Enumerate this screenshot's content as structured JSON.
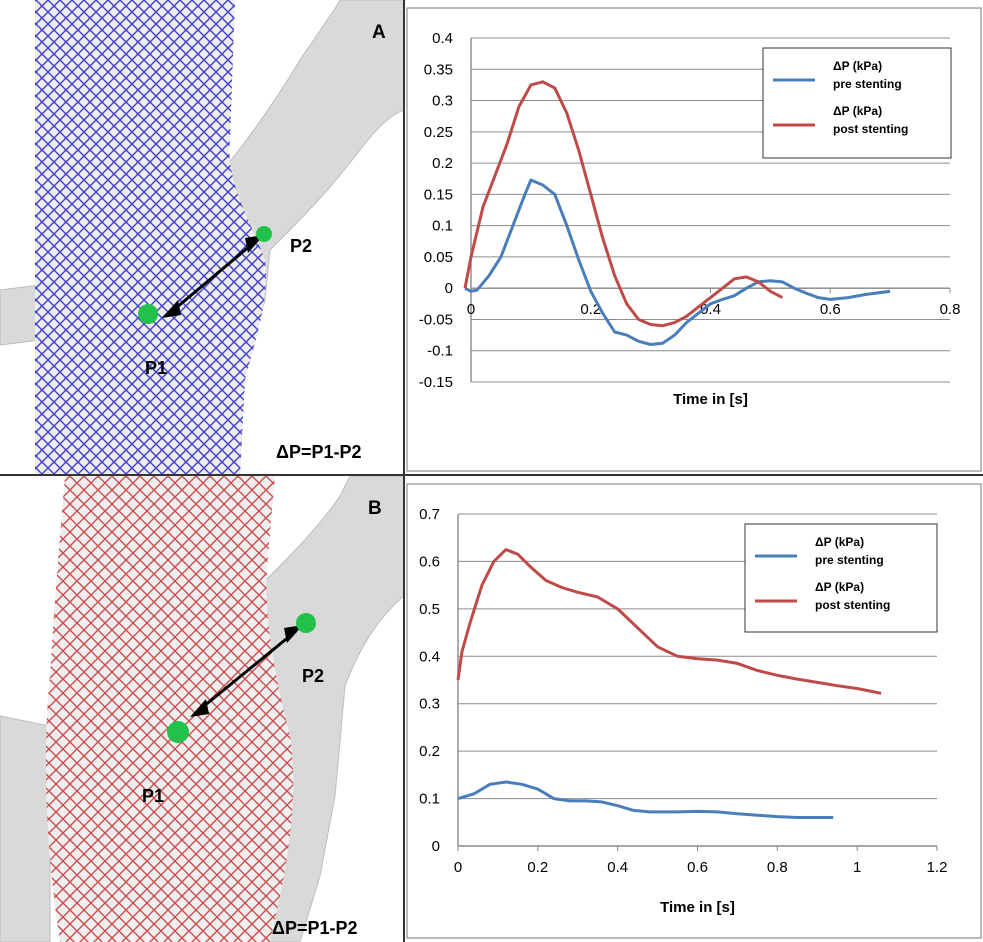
{
  "panels": [
    {
      "label": "A",
      "stent_color": "#2a2ac8",
      "point1": "P1",
      "point2": "P2",
      "formula": "ΔP=P1-P2"
    },
    {
      "label": "B",
      "stent_color": "#c83a3a",
      "point1": "P1",
      "point2": "P2",
      "formula": "ΔP=P1-P2"
    }
  ],
  "chart_data": [
    {
      "type": "line",
      "xlabel": "Time in [s]",
      "ylabel": "",
      "xlim": [
        0,
        0.8
      ],
      "ylim": [
        -0.15,
        0.4
      ],
      "x_ticks": [
        "0",
        "0.2",
        "0.4",
        "0.6",
        "0.8"
      ],
      "y_ticks": [
        "0.4",
        "0.35",
        "0.3",
        "0.25",
        "0.2",
        "0.15",
        "0.1",
        "0.05",
        "0",
        "-0.05",
        "-0.1",
        "-0.15"
      ],
      "grid": "horizontal",
      "legend": "top-right",
      "series": [
        {
          "name": "ΔP (kPa) pre stenting",
          "line1": "ΔP (kPa)",
          "line2": "pre stenting",
          "color": "#4a7ebb",
          "x": [
            -0.01,
            0.0,
            0.01,
            0.03,
            0.05,
            0.07,
            0.09,
            0.1,
            0.12,
            0.14,
            0.16,
            0.18,
            0.2,
            0.22,
            0.24,
            0.26,
            0.28,
            0.3,
            0.32,
            0.34,
            0.36,
            0.38,
            0.4,
            0.42,
            0.44,
            0.46,
            0.48,
            0.5,
            0.52,
            0.54,
            0.56,
            0.58,
            0.6,
            0.63,
            0.66,
            0.7
          ],
          "y": [
            0.0,
            -0.005,
            -0.003,
            0.02,
            0.05,
            0.1,
            0.15,
            0.173,
            0.165,
            0.15,
            0.1,
            0.045,
            -0.005,
            -0.04,
            -0.07,
            -0.075,
            -0.085,
            -0.09,
            -0.088,
            -0.075,
            -0.055,
            -0.04,
            -0.025,
            -0.018,
            -0.012,
            0.0,
            0.01,
            0.012,
            0.01,
            0.0,
            -0.008,
            -0.015,
            -0.018,
            -0.015,
            -0.01,
            -0.005
          ]
        },
        {
          "name": "ΔP (kPa) post stenting",
          "line1": "ΔP (kPa)",
          "line2": "post stenting",
          "color": "#be4b48",
          "x": [
            -0.01,
            0.0,
            0.02,
            0.04,
            0.06,
            0.08,
            0.1,
            0.12,
            0.14,
            0.16,
            0.18,
            0.2,
            0.22,
            0.24,
            0.26,
            0.28,
            0.3,
            0.32,
            0.34,
            0.36,
            0.38,
            0.4,
            0.42,
            0.44,
            0.46,
            0.48,
            0.5,
            0.52
          ],
          "y": [
            0.0,
            0.05,
            0.13,
            0.18,
            0.23,
            0.29,
            0.325,
            0.33,
            0.32,
            0.28,
            0.22,
            0.15,
            0.08,
            0.02,
            -0.025,
            -0.05,
            -0.058,
            -0.06,
            -0.055,
            -0.045,
            -0.03,
            -0.015,
            0.0,
            0.015,
            0.018,
            0.01,
            -0.005,
            -0.015
          ]
        }
      ]
    },
    {
      "type": "line",
      "xlabel": "Time in [s]",
      "ylabel": "",
      "xlim": [
        0,
        1.2
      ],
      "ylim": [
        0,
        0.7
      ],
      "x_ticks": [
        "0",
        "0.2",
        "0.4",
        "0.6",
        "0.8",
        "1",
        "1.2"
      ],
      "y_ticks": [
        "0.7",
        "0.6",
        "0.5",
        "0.4",
        "0.3",
        "0.2",
        "0.1",
        "0"
      ],
      "grid": "horizontal",
      "legend": "top-right",
      "series": [
        {
          "name": "ΔP (kPa) pre stenting",
          "line1": "ΔP (kPa)",
          "line2": "pre stenting",
          "color": "#4a7ebb",
          "x": [
            0.0,
            0.04,
            0.08,
            0.12,
            0.16,
            0.2,
            0.24,
            0.28,
            0.32,
            0.36,
            0.4,
            0.44,
            0.48,
            0.55,
            0.6,
            0.65,
            0.7,
            0.75,
            0.8,
            0.85,
            0.9,
            0.94
          ],
          "y": [
            0.1,
            0.11,
            0.13,
            0.135,
            0.13,
            0.12,
            0.1,
            0.095,
            0.095,
            0.093,
            0.085,
            0.075,
            0.072,
            0.072,
            0.073,
            0.072,
            0.068,
            0.065,
            0.062,
            0.06,
            0.06,
            0.06
          ]
        },
        {
          "name": "ΔP (kPa) post stenting",
          "line1": "ΔP (kPa)",
          "line2": "post stenting",
          "color": "#be4b48",
          "x": [
            0.0,
            0.01,
            0.03,
            0.06,
            0.09,
            0.12,
            0.15,
            0.18,
            0.22,
            0.26,
            0.3,
            0.35,
            0.4,
            0.45,
            0.5,
            0.55,
            0.6,
            0.65,
            0.7,
            0.75,
            0.8,
            0.85,
            0.9,
            0.95,
            1.0,
            1.06
          ],
          "y": [
            0.35,
            0.41,
            0.47,
            0.55,
            0.6,
            0.625,
            0.615,
            0.59,
            0.56,
            0.545,
            0.535,
            0.525,
            0.5,
            0.46,
            0.42,
            0.4,
            0.395,
            0.392,
            0.385,
            0.37,
            0.36,
            0.352,
            0.345,
            0.338,
            0.332,
            0.322
          ]
        }
      ]
    }
  ]
}
